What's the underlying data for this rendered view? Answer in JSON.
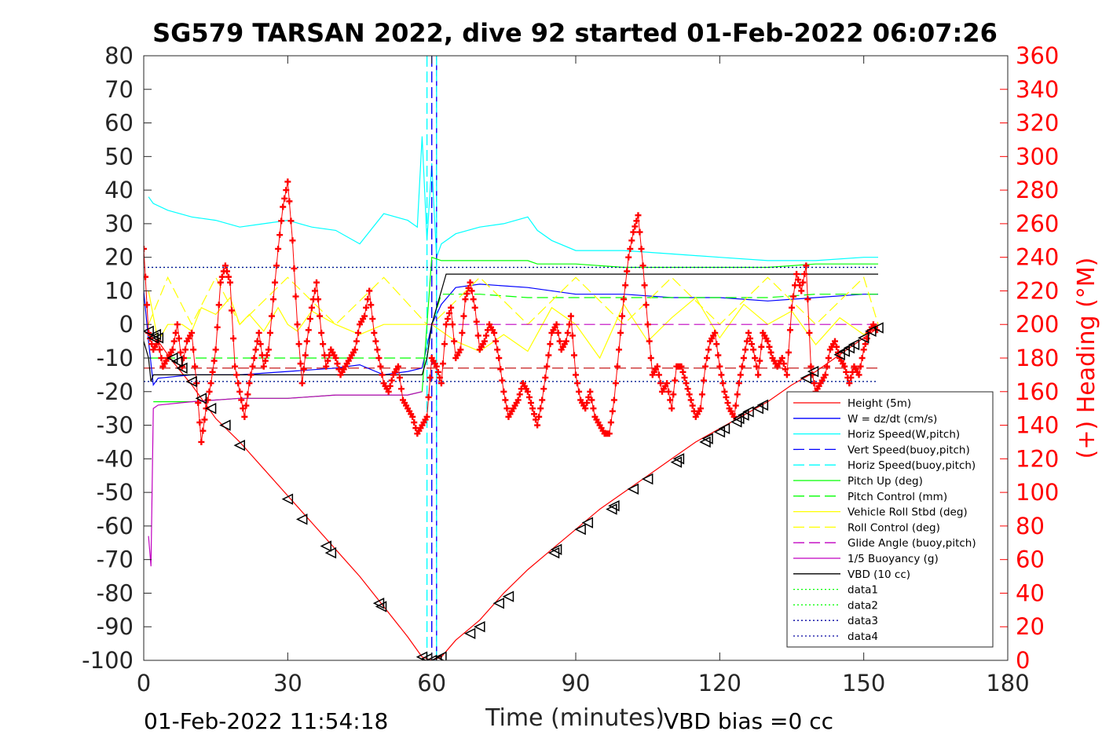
{
  "chart_data": {
    "type": "line",
    "title": "SG579 TARSAN 2022, dive 92 started 01-Feb-2022 06:07:26",
    "xlabel": "Time (minutes)",
    "ylabel_right": "(+) Heading (°M)",
    "xlim": [
      0,
      180
    ],
    "ylim_left": [
      -100,
      80
    ],
    "ylim_right": [
      0,
      360
    ],
    "x_ticks": [
      "0",
      "30",
      "60",
      "90",
      "120",
      "150",
      "180"
    ],
    "y_ticks_left": [
      "80",
      "70",
      "60",
      "50",
      "40",
      "30",
      "20",
      "10",
      "0",
      "-10",
      "-20",
      "-30",
      "-40",
      "-50",
      "-60",
      "-70",
      "-80",
      "-90",
      "-100"
    ],
    "y_ticks_right": [
      "360",
      "340",
      "320",
      "300",
      "280",
      "260",
      "240",
      "220",
      "200",
      "180",
      "160",
      "140",
      "120",
      "100",
      "80",
      "60",
      "40",
      "20",
      "0"
    ],
    "grid": false,
    "legend_position": "bottom-right",
    "footer_left": "01-Feb-2022 11:54:18",
    "footer_right": "VBD bias =0 cc",
    "colors": {
      "height": "#ff0000",
      "w": "#0000ff",
      "horiz_speed": "#00ffff",
      "pitch": "#00ff00",
      "roll": "#ffff00",
      "glide": "#c000c0",
      "vbd": "#000000",
      "heading": "#ff0000",
      "data3": "#0000a0"
    },
    "series": [
      {
        "name": "Height (5m)",
        "x": [
          0,
          3,
          6,
          10,
          15,
          20,
          25,
          30,
          35,
          40,
          45,
          50,
          55,
          58,
          60,
          62,
          65,
          70,
          75,
          80,
          85,
          90,
          95,
          100,
          105,
          110,
          115,
          120,
          125,
          130,
          135,
          140,
          145,
          150,
          153
        ],
        "y": [
          -2,
          -5,
          -11,
          -18,
          -28,
          -35,
          -43,
          -51,
          -59,
          -67,
          -75,
          -84,
          -93,
          -99,
          -100,
          -99,
          -94,
          -88,
          -80,
          -73,
          -67,
          -61,
          -55,
          -50,
          -45,
          -40,
          -35,
          -31,
          -27,
          -23,
          -18,
          -14,
          -9,
          -4,
          -1
        ]
      },
      {
        "name": "W = dz/dt (cm/s)",
        "x": [
          0,
          1,
          2,
          3,
          10,
          20,
          30,
          40,
          45,
          50,
          55,
          58,
          60,
          62,
          65,
          70,
          80,
          90,
          100,
          110,
          120,
          130,
          140,
          150,
          153
        ],
        "y": [
          10,
          -5,
          -18,
          -16,
          -15,
          -15,
          -14,
          -13,
          -12,
          -15,
          -14,
          -13,
          0,
          6,
          11,
          12,
          11,
          9,
          9,
          8,
          8,
          7,
          8,
          9,
          9
        ]
      },
      {
        "name": "Horiz Speed(W,pitch)",
        "x": [
          1,
          2,
          5,
          10,
          15,
          20,
          25,
          30,
          35,
          40,
          45,
          50,
          55,
          57,
          58,
          59,
          60,
          61,
          62,
          65,
          70,
          75,
          80,
          82,
          85,
          90,
          100,
          110,
          120,
          130,
          140,
          150,
          153
        ],
        "y": [
          38,
          36,
          34,
          32,
          31,
          29,
          30,
          31,
          29,
          28,
          24,
          33,
          31,
          29,
          56,
          25,
          48,
          20,
          24,
          27,
          29,
          30,
          32,
          28,
          25,
          22,
          22,
          21,
          20,
          19,
          19,
          20,
          20
        ]
      },
      {
        "name": "Vert Speed(buoy,pitch)",
        "x": [
          60,
          60,
          61,
          61
        ],
        "y": [
          80,
          -100,
          -100,
          80
        ]
      },
      {
        "name": "Horiz Speed(buoy,pitch)",
        "x": [
          59,
          59,
          61,
          61
        ],
        "y": [
          80,
          -100,
          -100,
          80
        ]
      },
      {
        "name": "Pitch Up (deg)",
        "x": [
          2,
          10,
          20,
          30,
          40,
          50,
          55,
          58,
          59,
          60,
          62,
          70,
          80,
          82,
          90,
          100,
          110,
          120,
          130,
          140,
          150,
          153
        ],
        "y": [
          -23,
          -23,
          -22,
          -22,
          -21,
          -21,
          -21,
          -20,
          0,
          20,
          19,
          19,
          19,
          18,
          18,
          17,
          17,
          17,
          17,
          18,
          18,
          18
        ]
      },
      {
        "name": "Pitch Control (mm)",
        "x": [
          1,
          10,
          20,
          30,
          40,
          50,
          59,
          60,
          62,
          70,
          80,
          90,
          100,
          110,
          120,
          130,
          140,
          150,
          153
        ],
        "y": [
          -10,
          -10,
          -10,
          -10,
          -10,
          -10,
          -10,
          0,
          9,
          9,
          8,
          8,
          8,
          8,
          8,
          8,
          9,
          9,
          9
        ]
      },
      {
        "name": "Vehicle Roll Stbd (deg)",
        "x": [
          1,
          3,
          5,
          8,
          10,
          12,
          15,
          18,
          20,
          22,
          25,
          28,
          30,
          32,
          35,
          40,
          45,
          50,
          55,
          58,
          60,
          62,
          65,
          70,
          75,
          80,
          85,
          90,
          95,
          100,
          105,
          110,
          115,
          120,
          125,
          130,
          135,
          140,
          145,
          150,
          153
        ],
        "y": [
          10,
          -5,
          0,
          0,
          -2,
          5,
          3,
          8,
          0,
          3,
          -2,
          5,
          0,
          -2,
          4,
          0,
          -3,
          0,
          0,
          0,
          0,
          -2,
          -5,
          -8,
          -3,
          -8,
          5,
          0,
          -10,
          6,
          -5,
          2,
          8,
          -4,
          6,
          0,
          4,
          -6,
          2,
          -3,
          0
        ]
      },
      {
        "name": "Roll Control (deg)",
        "x": [
          1,
          5,
          10,
          15,
          20,
          30,
          40,
          50,
          59,
          60,
          70,
          80,
          90,
          100,
          110,
          120,
          130,
          140,
          150,
          153
        ],
        "y": [
          0,
          14,
          0,
          14,
          0,
          14,
          0,
          14,
          0,
          0,
          14,
          0,
          14,
          0,
          14,
          0,
          14,
          0,
          14,
          0
        ]
      },
      {
        "name": "Glide Angle (buoy,pitch)",
        "x": [
          59,
          60,
          61,
          62,
          70,
          80,
          90,
          100,
          110,
          120,
          130,
          140,
          150,
          153
        ],
        "y": [
          0,
          0,
          0,
          0,
          0,
          0,
          0,
          0,
          0,
          0,
          0,
          0,
          0,
          0
        ]
      },
      {
        "name": "1/5 Buoyancy (g)",
        "x": [
          1,
          1.5,
          2,
          3,
          10,
          20,
          30,
          40,
          50,
          55,
          58
        ],
        "y": [
          -63,
          -72,
          -25,
          -24,
          -23,
          -22,
          -22,
          -21,
          -21,
          -21,
          -20
        ]
      },
      {
        "name": "VBD (10 cc)",
        "x": [
          0,
          1,
          1.5,
          2,
          5,
          10,
          20,
          30,
          40,
          50,
          58,
          59,
          60,
          61,
          62,
          63,
          70,
          80,
          90,
          100,
          110,
          120,
          130,
          140,
          150,
          153
        ],
        "y": [
          -5,
          -10,
          -17,
          -15,
          -15,
          -15,
          -15,
          -15,
          -15,
          -15,
          -15,
          -10,
          0,
          5,
          10,
          15,
          15,
          15,
          15,
          15,
          15,
          15,
          15,
          15,
          15,
          15
        ]
      },
      {
        "name": "data1",
        "x": [
          0,
          153
        ],
        "y": [
          17,
          17
        ]
      },
      {
        "name": "data2",
        "x": [
          0,
          153
        ],
        "y": [
          -17,
          -17
        ]
      },
      {
        "name": "data3",
        "x": [
          0,
          153
        ],
        "y": [
          17,
          17
        ]
      },
      {
        "name": "data4",
        "x": [
          0,
          153
        ],
        "y": [
          -17,
          -17
        ]
      }
    ],
    "extra_lines": [
      {
        "x": [
          0,
          153
        ],
        "y": [
          -13,
          -13
        ],
        "color": "#c00000",
        "dash": "dashed"
      }
    ],
    "heading": {
      "x": [
        0,
        1,
        2,
        3,
        4,
        5,
        6,
        7,
        8,
        9,
        10,
        11,
        12,
        13,
        14,
        15,
        16,
        17,
        18,
        19,
        20,
        21,
        22,
        23,
        24,
        25,
        26,
        27,
        28,
        29,
        30,
        31,
        32,
        33,
        34,
        35,
        36,
        37,
        38,
        39,
        40,
        41,
        42,
        43,
        44,
        45,
        46,
        47,
        48,
        49,
        50,
        51,
        52,
        53,
        54,
        55,
        56,
        57,
        58,
        59,
        60,
        61,
        62,
        63,
        64,
        65,
        66,
        67,
        68,
        69,
        70,
        71,
        72,
        73,
        74,
        75,
        76,
        77,
        78,
        79,
        80,
        81,
        82,
        83,
        84,
        85,
        86,
        87,
        88,
        89,
        90,
        91,
        92,
        93,
        94,
        95,
        96,
        97,
        98,
        99,
        100,
        101,
        102,
        103,
        104,
        105,
        106,
        107,
        108,
        109,
        110,
        111,
        112,
        113,
        114,
        115,
        116,
        117,
        118,
        119,
        120,
        121,
        122,
        123,
        124,
        125,
        126,
        127,
        128,
        129,
        130,
        131,
        132,
        133,
        134,
        135,
        136,
        137,
        138,
        139,
        140,
        141,
        142,
        143,
        144,
        145,
        146,
        147,
        148,
        149,
        150,
        151,
        152,
        153
      ],
      "y": [
        245,
        195,
        185,
        190,
        175,
        180,
        185,
        200,
        175,
        190,
        195,
        165,
        130,
        150,
        165,
        185,
        225,
        235,
        225,
        175,
        160,
        145,
        165,
        180,
        195,
        175,
        185,
        215,
        245,
        270,
        285,
        250,
        200,
        165,
        190,
        210,
        225,
        195,
        175,
        185,
        180,
        170,
        175,
        180,
        185,
        200,
        205,
        220,
        195,
        180,
        165,
        160,
        170,
        175,
        155,
        150,
        145,
        135,
        140,
        145,
        180,
        175,
        165,
        200,
        210,
        180,
        185,
        215,
        225,
        210,
        185,
        190,
        200,
        195,
        180,
        160,
        145,
        150,
        155,
        165,
        160,
        150,
        140,
        155,
        175,
        195,
        200,
        185,
        190,
        205,
        170,
        155,
        150,
        160,
        145,
        140,
        135,
        135,
        155,
        185,
        215,
        240,
        255,
        265,
        235,
        200,
        170,
        175,
        160,
        165,
        150,
        175,
        175,
        165,
        155,
        145,
        150,
        175,
        190,
        195,
        175,
        160,
        150,
        145,
        165,
        180,
        195,
        185,
        170,
        195,
        190,
        180,
        175,
        180,
        170,
        210,
        230,
        220,
        235,
        175,
        160,
        165,
        170,
        185,
        190,
        180,
        175,
        165,
        175,
        170,
        185,
        195,
        200,
        195
      ]
    },
    "markers": {
      "x": [
        1,
        2,
        2.5,
        3,
        6,
        7,
        8,
        10,
        12,
        14,
        17,
        20,
        30,
        33,
        38,
        39,
        49,
        49.5,
        58,
        59,
        60,
        61,
        62,
        68,
        70,
        74,
        76,
        85.5,
        86,
        91,
        92.5,
        97.5,
        98,
        102,
        105,
        111,
        111.5,
        117,
        117.5,
        120,
        121,
        123.5,
        124,
        125,
        126,
        128,
        129,
        138,
        139.5,
        145,
        146,
        147,
        148,
        150,
        151.5,
        153
      ],
      "y": [
        -2,
        -4,
        -3,
        -4,
        -10,
        -11,
        -13,
        -17,
        -22,
        -25,
        -30,
        -36,
        -52,
        -58,
        -66,
        -68,
        -83,
        -84,
        -99,
        -99.5,
        -100,
        -100,
        -99,
        -92,
        -90,
        -83,
        -81,
        -68,
        -67,
        -61,
        -59,
        -55,
        -54,
        -49,
        -46,
        -41,
        -40,
        -35,
        -34,
        -32,
        -31,
        -29,
        -28,
        -27,
        -26,
        -25,
        -24,
        -16,
        -14,
        -9,
        -8,
        -7,
        -6,
        -4,
        -2,
        -1
      ]
    }
  }
}
